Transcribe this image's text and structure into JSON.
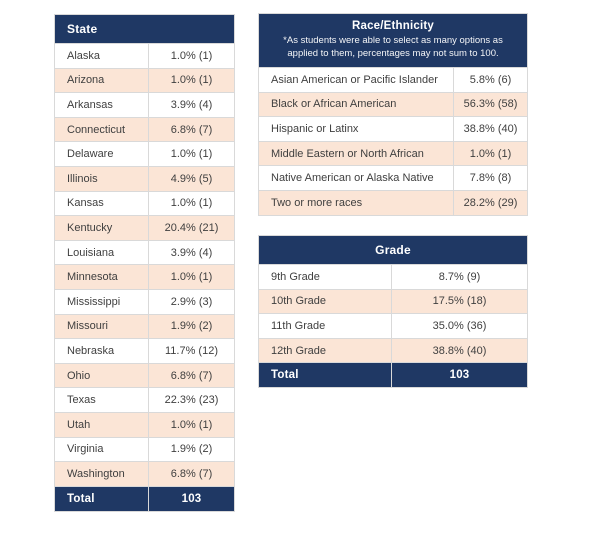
{
  "colors": {
    "header_navy": "#1f3864",
    "zebra_peach": "#fbe5d6",
    "border_gray": "#d9d9d9",
    "text_gray": "#3f3f3f",
    "header_text": "#ffffff"
  },
  "tables": {
    "state": {
      "header": "State",
      "rows": [
        {
          "label": "Alaska",
          "value": "1.0% (1)"
        },
        {
          "label": "Arizona",
          "value": "1.0% (1)"
        },
        {
          "label": "Arkansas",
          "value": "3.9% (4)"
        },
        {
          "label": "Connecticut",
          "value": "6.8% (7)"
        },
        {
          "label": "Delaware",
          "value": "1.0% (1)"
        },
        {
          "label": "Illinois",
          "value": "4.9% (5)"
        },
        {
          "label": "Kansas",
          "value": "1.0% (1)"
        },
        {
          "label": "Kentucky",
          "value": "20.4% (21)"
        },
        {
          "label": "Louisiana",
          "value": "3.9% (4)"
        },
        {
          "label": "Minnesota",
          "value": "1.0% (1)"
        },
        {
          "label": "Mississippi",
          "value": "2.9% (3)"
        },
        {
          "label": "Missouri",
          "value": "1.9% (2)"
        },
        {
          "label": "Nebraska",
          "value": "11.7% (12)"
        },
        {
          "label": "Ohio",
          "value": "6.8% (7)"
        },
        {
          "label": "Texas",
          "value": "22.3% (23)"
        },
        {
          "label": "Utah",
          "value": "1.0% (1)"
        },
        {
          "label": "Virginia",
          "value": "1.9% (2)"
        },
        {
          "label": "Washington",
          "value": "6.8% (7)"
        }
      ],
      "footer": {
        "label": "Total",
        "value": "103"
      }
    },
    "race": {
      "header": "Race/Ethnicity",
      "note_line1": "*As students were able to select as many options as",
      "note_line2": "applied to them,  percentages may not sum to 100.",
      "rows": [
        {
          "label": "Asian American or Pacific Islander",
          "value": "5.8% (6)"
        },
        {
          "label": "Black or African American",
          "value": "56.3% (58)"
        },
        {
          "label": "Hispanic or Latinx",
          "value": "38.8% (40)"
        },
        {
          "label": "Middle Eastern or North African",
          "value": "1.0% (1)"
        },
        {
          "label": "Native American or Alaska Native",
          "value": "7.8% (8)"
        },
        {
          "label": "Two or more races",
          "value": "28.2% (29)"
        }
      ]
    },
    "grade": {
      "header": "Grade",
      "rows": [
        {
          "label": "9th Grade",
          "value": "8.7% (9)"
        },
        {
          "label": "10th Grade",
          "value": "17.5% (18)"
        },
        {
          "label": "11th Grade",
          "value": "35.0% (36)"
        },
        {
          "label": "12th Grade",
          "value": "38.8% (40)"
        }
      ],
      "footer": {
        "label": "Total",
        "value": "103"
      }
    }
  }
}
